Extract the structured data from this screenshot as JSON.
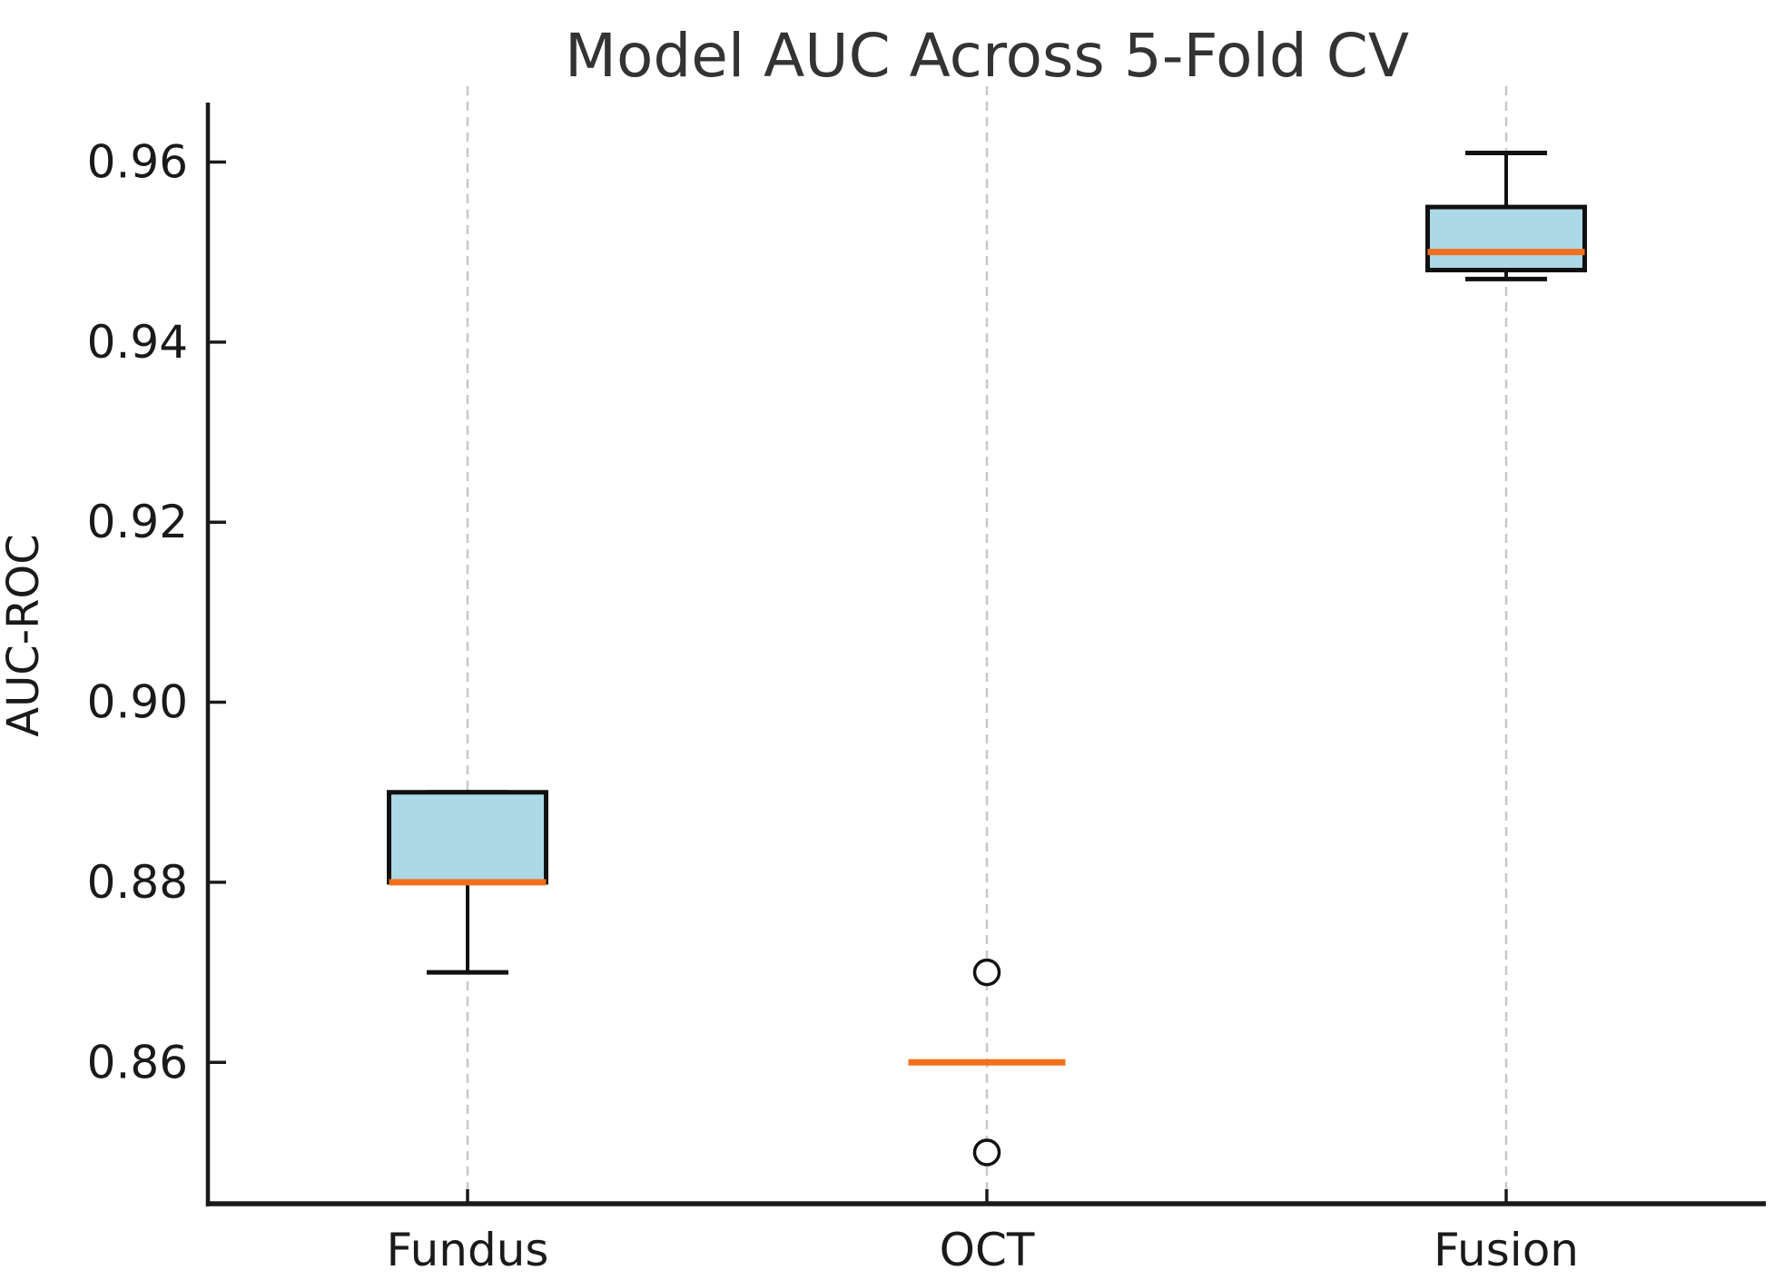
{
  "chart_data": {
    "type": "boxplot",
    "title": "Model AUC Across 5-Fold CV",
    "ylabel": "AUC-ROC",
    "xlabel": "",
    "categories": [
      "Fundus",
      "OCT",
      "Fusion"
    ],
    "ytick_values": [
      0.86,
      0.88,
      0.9,
      0.92,
      0.94,
      0.96
    ],
    "ytick_labels": [
      "0.86",
      "0.88",
      "0.90",
      "0.92",
      "0.94",
      "0.96"
    ],
    "ylim": [
      0.8443,
      0.9666
    ],
    "grid": {
      "vertical_dashed": true,
      "horizontal": false
    },
    "legend": "none",
    "series": [
      {
        "name": "Fundus",
        "whisker_low": 0.87,
        "q1": 0.88,
        "median": 0.88,
        "q3": 0.89,
        "whisker_high": 0.89,
        "outliers": []
      },
      {
        "name": "OCT",
        "whisker_low": 0.86,
        "q1": 0.86,
        "median": 0.86,
        "q3": 0.86,
        "whisker_high": 0.86,
        "outliers": [
          0.85,
          0.87
        ]
      },
      {
        "name": "Fusion",
        "whisker_low": 0.947,
        "q1": 0.948,
        "median": 0.95,
        "q3": 0.955,
        "whisker_high": 0.961,
        "outliers": []
      }
    ],
    "colors": {
      "box_fill": "#ADD8E6",
      "box_edge": "#111111",
      "median": "#F2701D",
      "whisker": "#111111",
      "outlier_edge": "#111111",
      "outlier_fill": "#FFFFFF",
      "grid": "#C8C8C8",
      "axis": "#1a1a1a",
      "tick_text": "#1a1a1a",
      "title_text": "#333333"
    }
  }
}
